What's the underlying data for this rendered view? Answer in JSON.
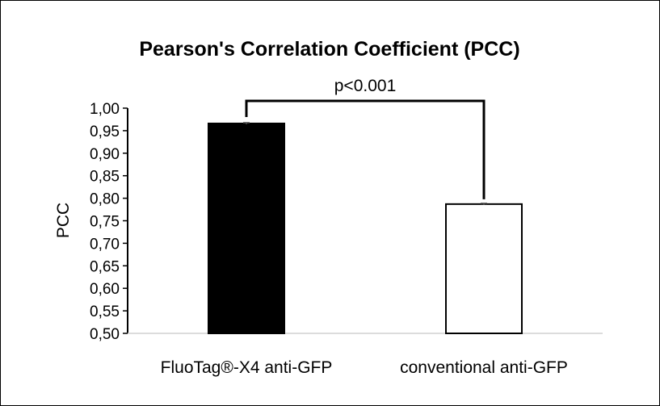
{
  "chart_data": {
    "type": "bar",
    "title": "Pearson's Correlation Coefficient (PCC)",
    "xlabel": "",
    "ylabel": "PCC",
    "categories": [
      "FluoTag®-X4 anti-GFP",
      "conventional anti-GFP"
    ],
    "values": [
      0.966,
      0.787
    ],
    "errors": [
      0.002,
      0.002
    ],
    "bar_colors": [
      "#000000",
      "#ffffff"
    ],
    "ylim": [
      0.5,
      1.0
    ],
    "yticks": [
      0.5,
      0.55,
      0.6,
      0.65,
      0.7,
      0.75,
      0.8,
      0.85,
      0.9,
      0.95,
      1.0
    ],
    "ytick_labels": [
      "0,50",
      "0,55",
      "0,60",
      "0,65",
      "0,70",
      "0,75",
      "0,80",
      "0,85",
      "0,90",
      "0,95",
      "1,00"
    ],
    "grid": false,
    "annotation": "p<0.001"
  }
}
